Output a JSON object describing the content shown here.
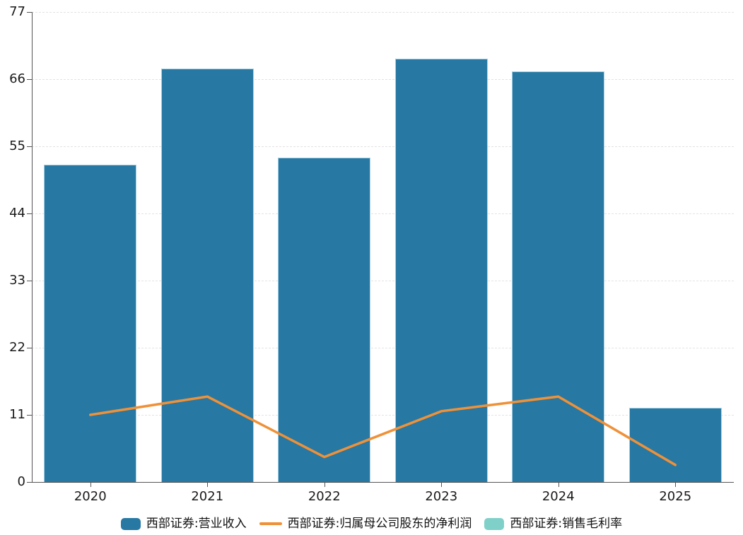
{
  "chart_data": {
    "type": "bar",
    "title": "",
    "xlabel": "",
    "ylabel": "",
    "categories": [
      "2020",
      "2021",
      "2022",
      "2023",
      "2024",
      "2025"
    ],
    "yticks": [
      0,
      11,
      22,
      33,
      44,
      55,
      66,
      77
    ],
    "ylim": [
      0,
      77
    ],
    "grid": "horizontal-dashed",
    "legend_position": "bottom-center",
    "series": [
      {
        "name": "西部证券:营业收入",
        "type": "bar",
        "color": "#2778A3",
        "values": [
          52.0,
          67.7,
          53.1,
          69.4,
          67.3,
          12.2
        ]
      },
      {
        "name": "西部证券:归属母公司股东的净利润",
        "type": "line",
        "color": "#EF9138",
        "values": [
          11.0,
          14.0,
          4.1,
          11.6,
          14.0,
          2.8
        ]
      },
      {
        "name": "西部证券:销售毛利率",
        "type": "line",
        "color": "#7FD0C9",
        "values": [],
        "visible_in_plot": false
      }
    ],
    "colors": {
      "axis": "#555555",
      "grid": "#E3E3E3",
      "text": "#1A1A1A",
      "bar_border": "#A9D2E4",
      "background": "#FFFFFF"
    }
  }
}
